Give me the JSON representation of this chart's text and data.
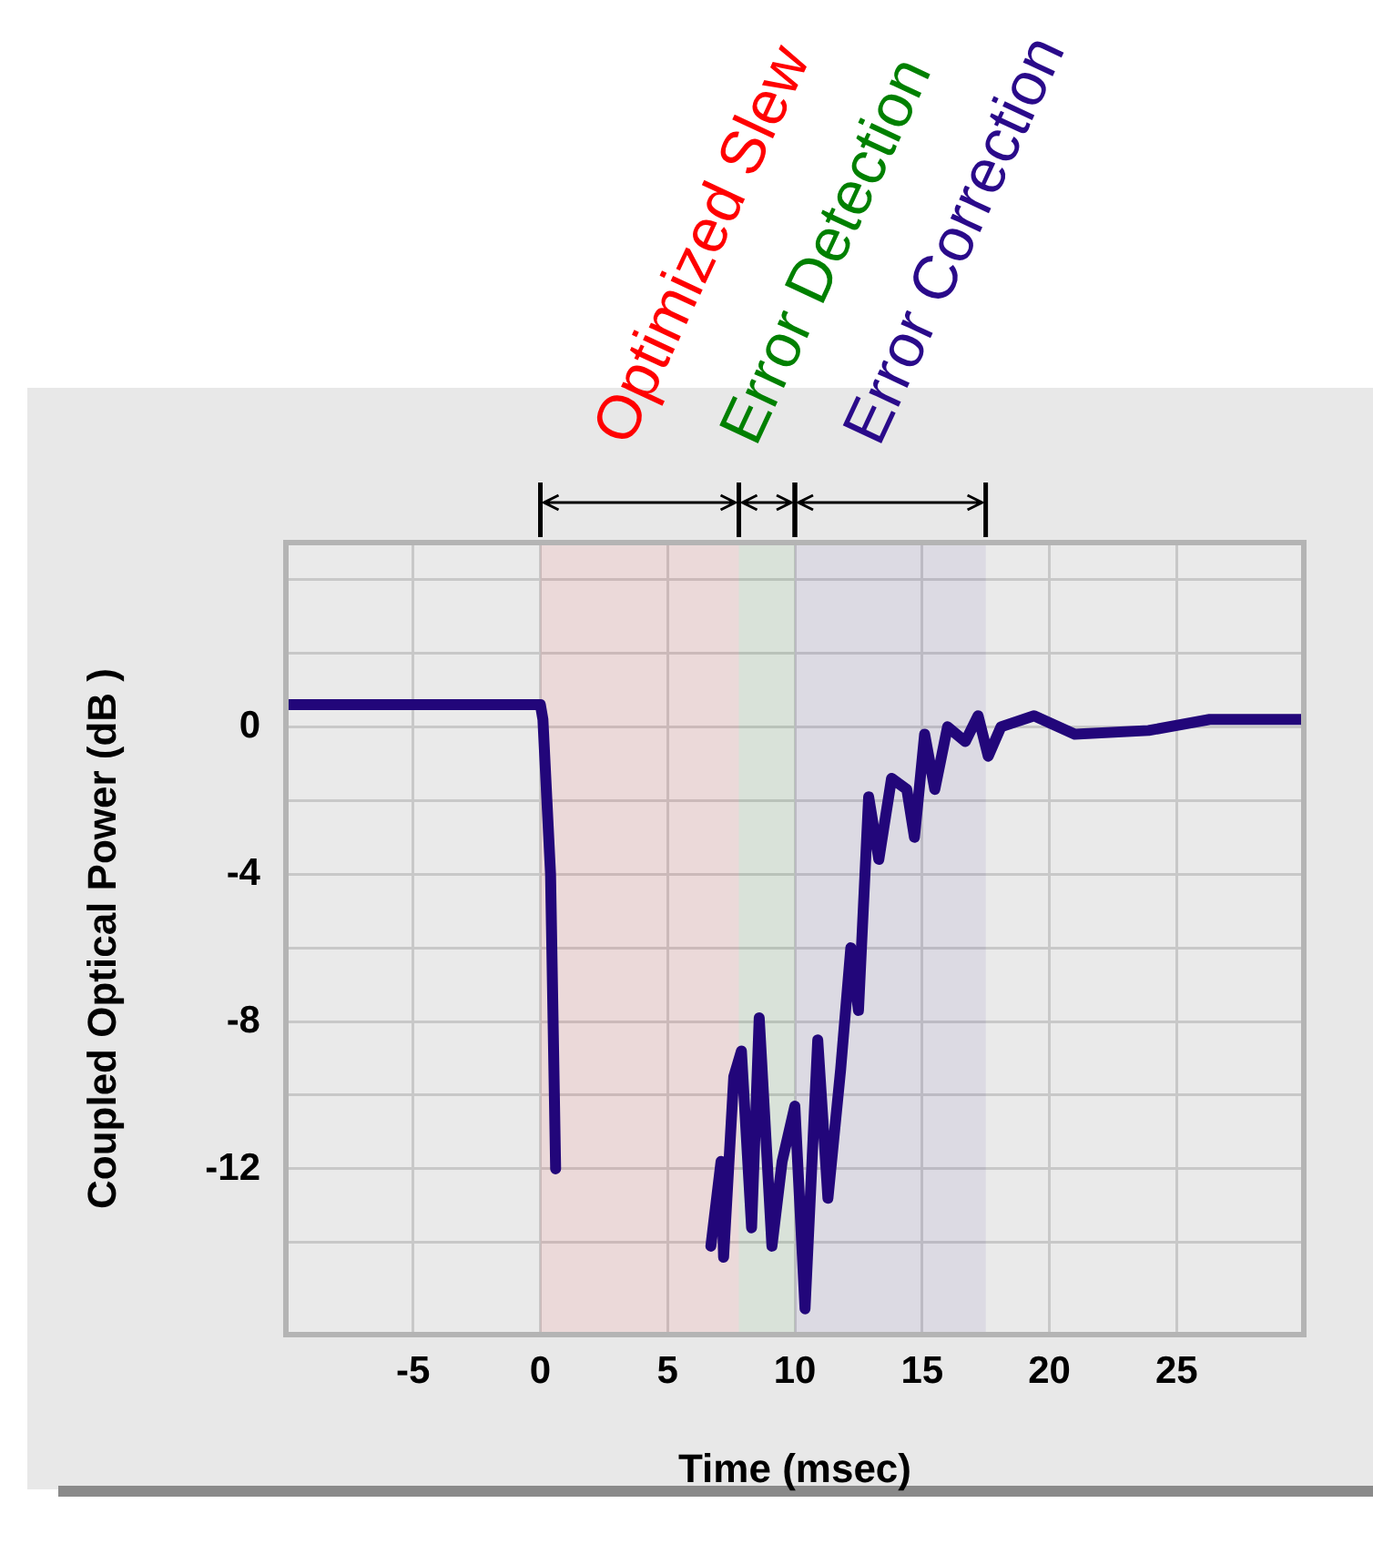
{
  "chart_data": {
    "type": "line",
    "xlabel": "Time (msec)",
    "ylabel": "Coupled Optical Power (dB )",
    "xlim": [
      -10,
      30
    ],
    "xticks": [
      -5,
      0,
      5,
      10,
      15,
      20,
      25
    ],
    "ylim": [
      -16.5,
      5
    ],
    "yticks": [
      {
        "value": -14,
        "label": null
      },
      -12,
      {
        "value": -10,
        "label": null
      },
      -8,
      {
        "value": -6,
        "label": null
      },
      -4,
      {
        "value": -2,
        "label": null
      },
      0,
      {
        "value": 2,
        "label": null
      },
      {
        "value": 4,
        "label": null
      }
    ],
    "grid": true,
    "marker": "none",
    "line_style": "solid",
    "bands": [
      {
        "axis": "x",
        "from": 0,
        "to": 7.8,
        "label": "Optimized Slew",
        "color": "#ff0000"
      },
      {
        "axis": "x",
        "from": 7.8,
        "to": 10,
        "label": "Error Detection",
        "color": "#008000"
      },
      {
        "axis": "x",
        "from": 10,
        "to": 17.5,
        "label": "Error Correction",
        "color": "#2a0a8a"
      }
    ],
    "series": [
      {
        "color": "#22067a",
        "x": [
          -10,
          -5,
          0,
          0.1,
          0.4,
          0.5,
          0.6,
          0.7,
          3,
          6.6,
          6.7,
          7.1,
          7.2,
          7.6,
          7.9,
          8.3,
          8.6,
          9.1,
          9.5,
          10.0,
          10.4,
          10.9,
          11.3,
          11.8,
          12.2,
          12.5,
          12.9,
          13.3,
          13.8,
          14.4,
          14.7,
          15.1,
          15.5,
          16.0,
          16.7,
          17.2,
          17.6,
          18.1,
          19.4,
          21.0,
          23.9,
          26.3,
          30
        ],
        "values": [
          0.6,
          0.6,
          0.6,
          0.2,
          -4,
          -8,
          -12,
          null,
          null,
          null,
          -14.1,
          -11.8,
          -14.4,
          -9.5,
          -8.8,
          -13.6,
          -7.9,
          -14.1,
          -11.8,
          -10.3,
          -15.8,
          -8.5,
          -12.8,
          -9.3,
          -6.0,
          -7.7,
          -1.9,
          -3.6,
          -1.4,
          -1.7,
          -3.0,
          -0.2,
          -1.7,
          0,
          -0.4,
          0.3,
          -0.8,
          0.0,
          0.3,
          -0.2,
          -0.1,
          0.2,
          0.2
        ]
      }
    ]
  }
}
